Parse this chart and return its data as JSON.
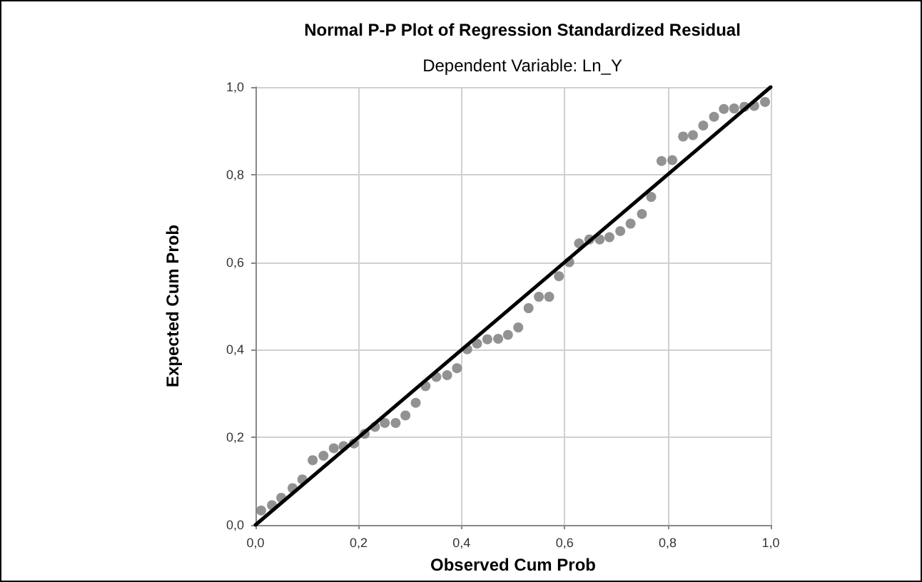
{
  "chart_data": {
    "type": "scatter",
    "title": "Normal P-P Plot of Regression Standardized Residual",
    "subtitle": "Dependent Variable: Ln_Y",
    "xlabel": "Observed Cum Prob",
    "ylabel": "Expected Cum Prob",
    "xlim": [
      0,
      1
    ],
    "ylim": [
      0,
      1
    ],
    "xticks": [
      {
        "value": 0,
        "label": "0,0"
      },
      {
        "value": 0.2,
        "label": "0,2"
      },
      {
        "value": 0.4,
        "label": "0,4"
      },
      {
        "value": 0.6,
        "label": "0,6"
      },
      {
        "value": 0.8,
        "label": "0,8"
      },
      {
        "value": 1,
        "label": "1,0"
      }
    ],
    "yticks": [
      {
        "value": 0,
        "label": "0,0"
      },
      {
        "value": 0.2,
        "label": "0,2"
      },
      {
        "value": 0.4,
        "label": "0,4"
      },
      {
        "value": 0.6,
        "label": "0,6"
      },
      {
        "value": 0.8,
        "label": "0,8"
      },
      {
        "value": 1,
        "label": "1,0"
      }
    ],
    "grid": true,
    "series": [
      {
        "type": "scatter",
        "marker": "circle",
        "color": "#777777",
        "x": [
          0.011,
          0.032,
          0.05,
          0.072,
          0.091,
          0.111,
          0.132,
          0.152,
          0.171,
          0.191,
          0.212,
          0.232,
          0.251,
          0.272,
          0.291,
          0.311,
          0.33,
          0.351,
          0.372,
          0.391,
          0.411,
          0.43,
          0.45,
          0.471,
          0.49,
          0.51,
          0.53,
          0.55,
          0.57,
          0.589,
          0.609,
          0.628,
          0.648,
          0.668,
          0.687,
          0.708,
          0.728,
          0.75,
          0.768,
          0.788,
          0.809,
          0.83,
          0.849,
          0.869,
          0.89,
          0.909,
          0.929,
          0.949,
          0.968,
          0.989
        ],
        "values": [
          0.033,
          0.045,
          0.062,
          0.084,
          0.104,
          0.148,
          0.158,
          0.175,
          0.18,
          0.186,
          0.208,
          0.224,
          0.233,
          0.233,
          0.25,
          0.279,
          0.317,
          0.338,
          0.342,
          0.358,
          0.401,
          0.414,
          0.424,
          0.425,
          0.434,
          0.451,
          0.495,
          0.521,
          0.521,
          0.568,
          0.6,
          0.643,
          0.652,
          0.652,
          0.657,
          0.671,
          0.688,
          0.71,
          0.749,
          0.831,
          0.833,
          0.887,
          0.89,
          0.912,
          0.932,
          0.95,
          0.951,
          0.955,
          0.957,
          0.966
        ]
      },
      {
        "type": "line",
        "marker": "none",
        "color": "#000000",
        "x": [
          0,
          1
        ],
        "values": [
          0,
          1
        ]
      }
    ]
  }
}
